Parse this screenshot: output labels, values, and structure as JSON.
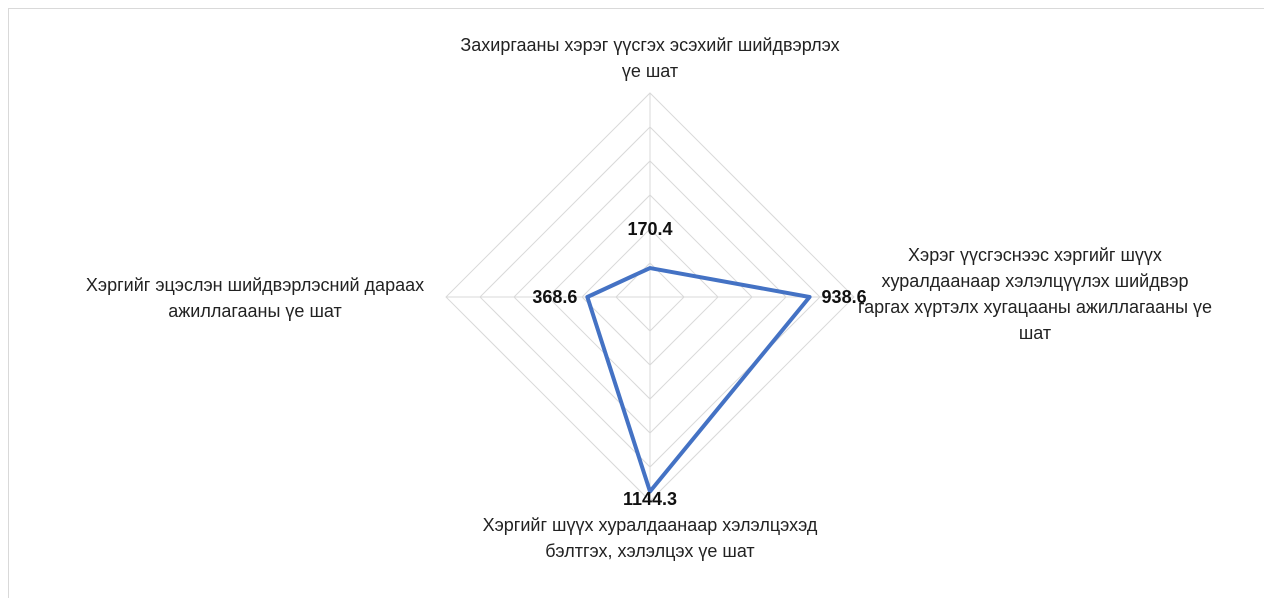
{
  "chart_data": {
    "type": "radar",
    "categories": [
      "Захиргааны хэрэг үүсгэх эсэхийг шийдвэрлэх үе шат",
      "Хэрэг үүсгэснээс хэргийг шүүх хуралдаанаар хэлэлцүүлэх шийдвэр гаргах хүртэлх хугацааны ажиллагааны үе шат",
      "Хэргийг шүүх хуралдаанаар хэлэлцэхэд бэлтгэх, хэлэлцэх үе шат",
      "Хэргийг эцэслэн шийдвэрлэсний дараах ажиллагааны үе шат"
    ],
    "values": [
      170.4,
      938.6,
      1144.3,
      368.6
    ],
    "color": "#4472c4",
    "ylim": [
      0,
      1200
    ],
    "yticks": [
      0,
      200,
      400,
      600,
      800,
      1000,
      1200
    ],
    "grid": true
  }
}
